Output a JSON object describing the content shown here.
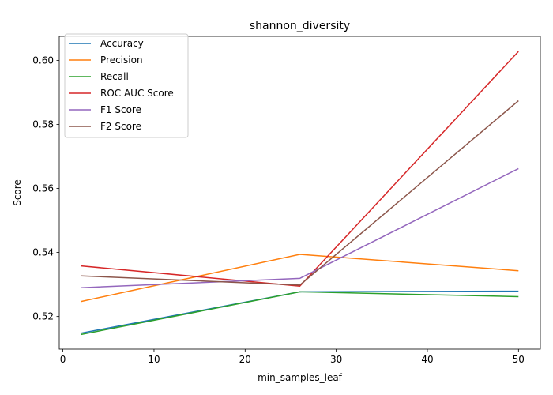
{
  "chart_data": {
    "type": "line",
    "title": "shannon_diversity",
    "xlabel": "min_samples_leaf",
    "ylabel": "Score",
    "x": [
      2,
      26,
      50
    ],
    "xlim": [
      -0.4,
      52.4
    ],
    "ylim": [
      0.5098,
      0.6075
    ],
    "xticks": [
      0,
      10,
      20,
      30,
      40,
      50
    ],
    "yticks": [
      0.52,
      0.54,
      0.56,
      0.58,
      0.6
    ],
    "ytick_labels": [
      "0.52",
      "0.54",
      "0.56",
      "0.58",
      "0.60"
    ],
    "grid": false,
    "legend_position": "top-left",
    "series": [
      {
        "name": "Accuracy",
        "color": "#1f77b4",
        "values": [
          0.5148,
          0.5277,
          0.5279
        ]
      },
      {
        "name": "Precision",
        "color": "#ff7f0e",
        "values": [
          0.5247,
          0.5394,
          0.5343
        ]
      },
      {
        "name": "Recall",
        "color": "#2ca02c",
        "values": [
          0.5144,
          0.5277,
          0.5262
        ]
      },
      {
        "name": "ROC AUC Score",
        "color": "#d62728",
        "values": [
          0.5358,
          0.5295,
          0.6028
        ]
      },
      {
        "name": "F1 Score",
        "color": "#9467bd",
        "values": [
          0.529,
          0.5319,
          0.5662
        ]
      },
      {
        "name": "F2 Score",
        "color": "#8c564b",
        "values": [
          0.5327,
          0.5298,
          0.5874
        ]
      }
    ]
  }
}
